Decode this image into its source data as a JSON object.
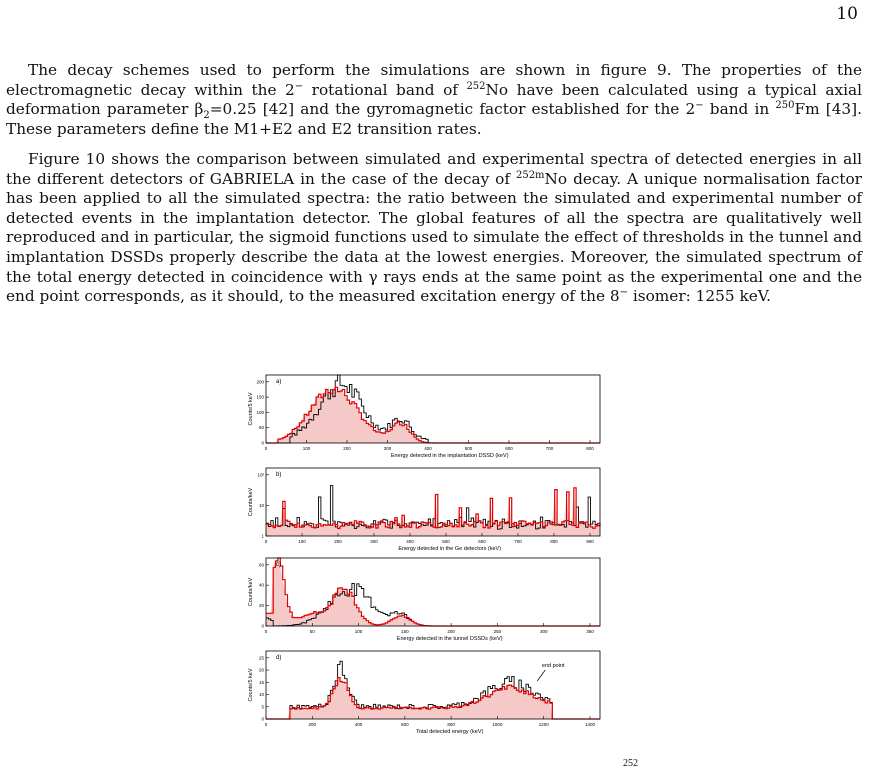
{
  "page_number": "10",
  "paragraphs": {
    "p1": {
      "s1": "The decay schemes used to perform the simulations are shown in figure 9. The properties of the electromagnetic decay within the 2",
      "s1_sup": "−",
      "s2": " rotational band of ",
      "s2_sup": "252",
      "s3": "No have been calculated using a typical axial deformation parameter β",
      "s3_sub": "2",
      "s4": "=0.25 [42] and the gyromagnetic factor established for the 2",
      "s4_sup": "−",
      "s5": " band in ",
      "s5_sup": "250",
      "s6": "Fm [43]. These parameters define the M1+E2 and E2 transition rates."
    },
    "p2": {
      "s1": "Figure 10 shows the comparison between simulated and experimental spectra of detected energies in all the different detectors of GABRIELA in the case of the decay of ",
      "s1_sup": "252m",
      "s2": "No decay. A unique normalisation factor has been applied to all the simulated spectra: the ratio between the simulated and experimental number of detected events in the implantation detector. The global features of all the spectra are qualitatively well reproduced and in particular, the sigmoid functions used to simulate the effect of thresholds in the tunnel and implantation DSSDs properly describe the data at the lowest energies. Moreover, the simulated spectrum of the total energy detected in coincidence with γ rays ends at the same point as the experimental one and the end point corresponds, as it should, to the measured excitation energy of the 8",
      "s2_sup": "−",
      "s3": " isomer: 1255 keV."
    }
  },
  "caption_fragment": "252",
  "colors": {
    "experimental": "#000000",
    "simulated": "#e00000",
    "fill": "#f6c9c9"
  },
  "figure": {
    "panels": [
      {
        "label": "a)",
        "ylabel": "Counts/5 keV",
        "xlabel": "Energy detected in the implantation DSSD (keV)",
        "xticks": [
          "0",
          "100",
          "200",
          "300",
          "400",
          "500",
          "600",
          "700",
          "800"
        ],
        "yticks": [
          "0",
          "50",
          "100",
          "150",
          "200"
        ]
      },
      {
        "label": "b)",
        "ylabel": "Counts/keV",
        "xlabel": "Energy detected in the Ge detectors (keV)",
        "xticks": [
          "0",
          "100",
          "200",
          "300",
          "400",
          "500",
          "600",
          "700",
          "800",
          "900"
        ],
        "yticks": [
          "1",
          "10",
          "10²"
        ]
      },
      {
        "label": "c)",
        "ylabel": "Counts/keV",
        "xlabel": "Energy detected in the tunnel DSSDs (keV)",
        "xticks": [
          "0",
          "50",
          "100",
          "150",
          "200",
          "250",
          "300",
          "350"
        ],
        "yticks": [
          "0",
          "20",
          "40",
          "60"
        ]
      },
      {
        "label": "d)",
        "ylabel": "Counts/5 keV",
        "xlabel": "Total detected energy (keV)",
        "xticks": [
          "0",
          "200",
          "400",
          "600",
          "800",
          "1000",
          "1200",
          "1400"
        ],
        "yticks": [
          "0",
          "5",
          "10",
          "15",
          "20",
          "25"
        ],
        "annotation": "end point"
      }
    ]
  }
}
